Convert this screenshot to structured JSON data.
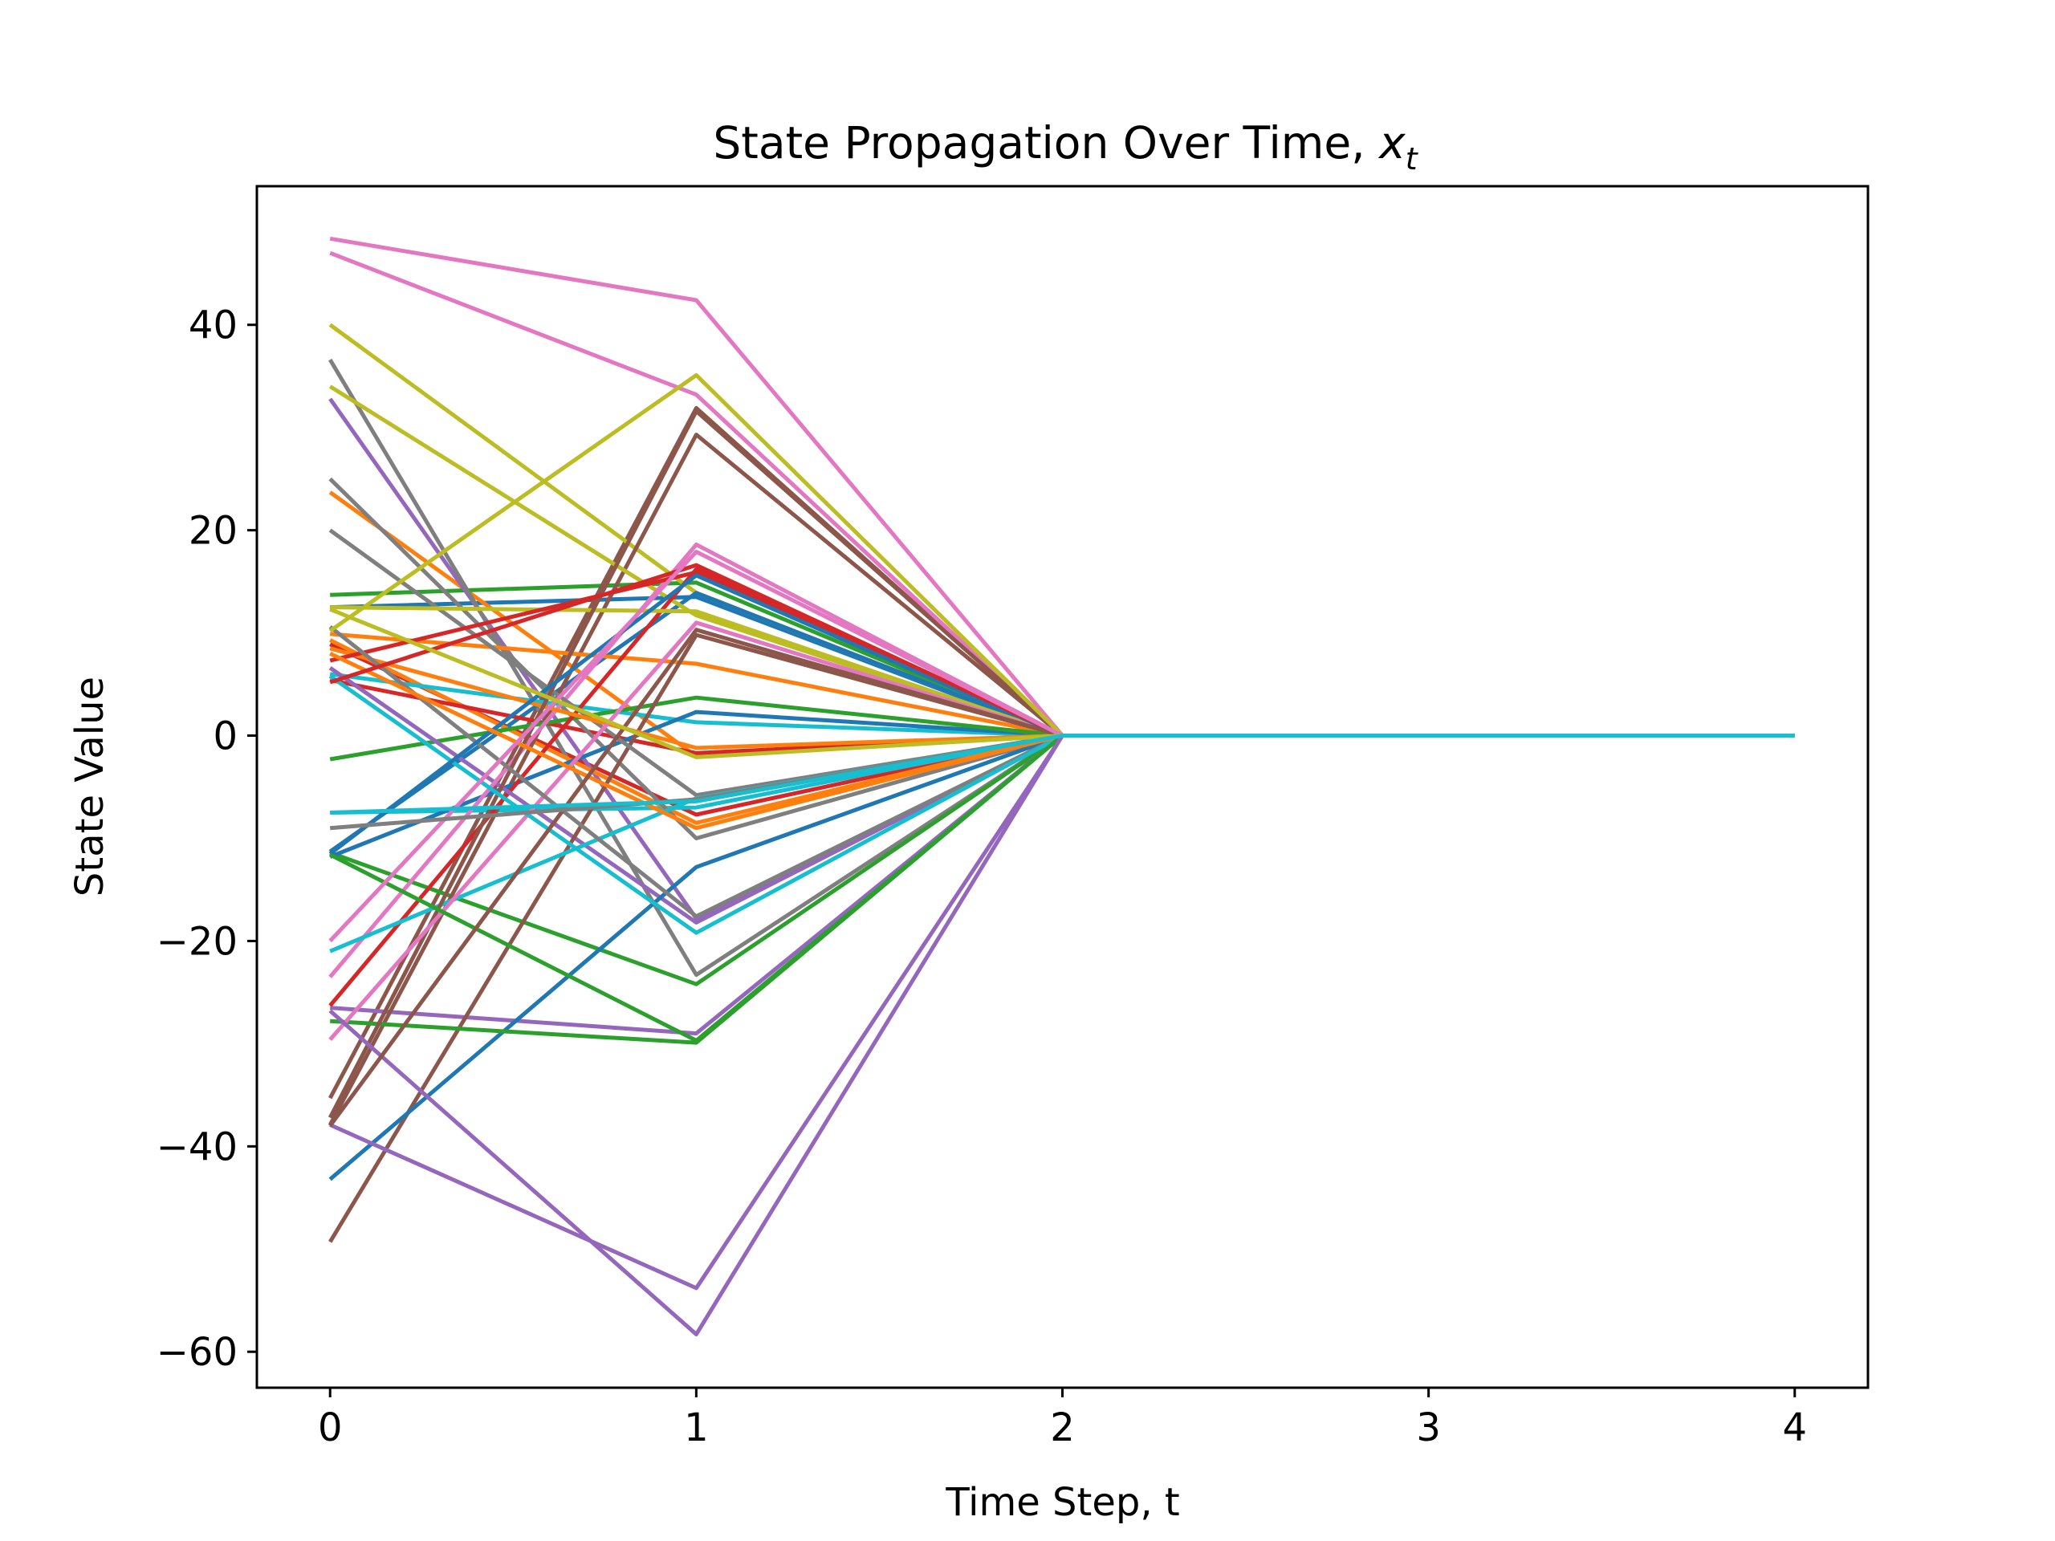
{
  "chart_data": {
    "type": "line",
    "title_main": "State Propagation Over Time, ",
    "title_var": "x",
    "title_sub": "t",
    "xlabel": "Time Step, t",
    "ylabel": "State Value",
    "x": [
      0,
      1,
      2,
      3,
      4
    ],
    "xlim": [
      -0.2,
      4.2
    ],
    "ylim": [
      -63.5,
      53.5
    ],
    "xticks": [
      0,
      1,
      2,
      3,
      4
    ],
    "xtick_labels": [
      "0",
      "1",
      "2",
      "3",
      "4"
    ],
    "yticks": [
      -60,
      -40,
      -20,
      0,
      20,
      40
    ],
    "ytick_labels": [
      "−60",
      "−40",
      "−20",
      "0",
      "20",
      "40"
    ],
    "grid": false,
    "legend": "none",
    "colors": [
      "#1f77b4",
      "#ff7f0e",
      "#2ca02c",
      "#d62728",
      "#9467bd",
      "#8c564b",
      "#e377c2",
      "#7f7f7f",
      "#bcbd22",
      "#17becf"
    ],
    "series": [
      {
        "values": [
          12.5,
          13.5,
          0,
          0,
          0
        ]
      },
      {
        "values": [
          23.7,
          -2.0,
          0,
          0,
          0
        ]
      },
      {
        "values": [
          13.7,
          14.9,
          0,
          0,
          0
        ]
      },
      {
        "values": [
          8.9,
          -7.7,
          0,
          0,
          0
        ]
      },
      {
        "values": [
          32.8,
          -17.8,
          0,
          0,
          0
        ]
      },
      {
        "values": [
          -35.3,
          31.9,
          0,
          0,
          0
        ]
      },
      {
        "values": [
          48.4,
          42.4,
          0,
          0,
          0
        ]
      },
      {
        "values": [
          36.6,
          -23.3,
          0,
          0,
          0
        ]
      },
      {
        "values": [
          40.0,
          13.9,
          0,
          0,
          0
        ]
      },
      {
        "values": [
          -7.5,
          -7.0,
          0,
          0,
          0
        ]
      },
      {
        "values": [
          -11.3,
          13.9,
          0,
          0,
          0
        ]
      },
      {
        "values": [
          9.3,
          -8.5,
          0,
          0,
          0
        ]
      },
      {
        "values": [
          -11.4,
          -24.2,
          0,
          0,
          0
        ]
      },
      {
        "values": [
          5.4,
          -1.7,
          0,
          0,
          0
        ]
      },
      {
        "values": [
          -26.5,
          -29.0,
          0,
          0,
          0
        ]
      },
      {
        "values": [
          -37.9,
          29.3,
          0,
          0,
          0
        ]
      },
      {
        "values": [
          47.0,
          33.2,
          0,
          0,
          0
        ]
      },
      {
        "values": [
          25.0,
          -10.0,
          0,
          0,
          0
        ]
      },
      {
        "values": [
          34.0,
          11.7,
          0,
          0,
          0
        ]
      },
      {
        "values": [
          6.0,
          1.3,
          0,
          0,
          0
        ]
      },
      {
        "values": [
          -11.8,
          2.3,
          0,
          0,
          0
        ]
      },
      {
        "values": [
          9.9,
          7.0,
          0,
          0,
          0
        ]
      },
      {
        "values": [
          -2.3,
          3.7,
          0,
          0,
          0
        ]
      },
      {
        "values": [
          -26.3,
          16.2,
          0,
          0,
          0
        ]
      },
      {
        "values": [
          6.6,
          -18.2,
          0,
          0,
          0
        ]
      },
      {
        "values": [
          -49.3,
          9.8,
          0,
          0,
          0
        ]
      },
      {
        "values": [
          -23.5,
          18.6,
          0,
          0,
          0
        ]
      },
      {
        "values": [
          20.0,
          -5.8,
          0,
          0,
          0
        ]
      },
      {
        "values": [
          12.5,
          12.1,
          0,
          0,
          0
        ]
      },
      {
        "values": [
          -21.0,
          -6.1,
          0,
          0,
          0
        ]
      },
      {
        "values": [
          -43.2,
          -12.8,
          0,
          0,
          0
        ]
      },
      {
        "values": [
          8.5,
          -1.2,
          0,
          0,
          0
        ]
      },
      {
        "values": [
          -27.8,
          -29.9,
          0,
          0,
          0
        ]
      },
      {
        "values": [
          7.3,
          15.9,
          0,
          0,
          0
        ]
      },
      {
        "values": [
          -37.9,
          -53.8,
          0,
          0,
          0
        ]
      },
      {
        "values": [
          -37.2,
          31.6,
          0,
          0,
          0
        ]
      },
      {
        "values": [
          -29.6,
          11.0,
          0,
          0,
          0
        ]
      },
      {
        "values": [
          10.6,
          -17.6,
          0,
          0,
          0
        ]
      },
      {
        "values": [
          10.2,
          35.1,
          0,
          0,
          0
        ]
      },
      {
        "values": [
          5.8,
          -19.2,
          0,
          0,
          0
        ]
      },
      {
        "values": [
          -11.5,
          15.6,
          0,
          0,
          0
        ]
      },
      {
        "values": [
          8.0,
          -9.0,
          0,
          0,
          0
        ]
      },
      {
        "values": [
          -11.6,
          -29.7,
          0,
          0,
          0
        ]
      },
      {
        "values": [
          5.2,
          16.6,
          0,
          0,
          0
        ]
      },
      {
        "values": [
          -26.8,
          -58.3,
          0,
          0,
          0
        ]
      },
      {
        "values": [
          -38.0,
          10.3,
          0,
          0,
          0
        ]
      },
      {
        "values": [
          -20.0,
          17.9,
          0,
          0,
          0
        ]
      },
      {
        "values": [
          -9.0,
          -6.2,
          0,
          0,
          0
        ]
      },
      {
        "values": [
          12.3,
          -2.1,
          0,
          0,
          0
        ]
      },
      {
        "values": [
          -7.5,
          -6.4,
          0,
          0,
          0
        ]
      }
    ]
  }
}
